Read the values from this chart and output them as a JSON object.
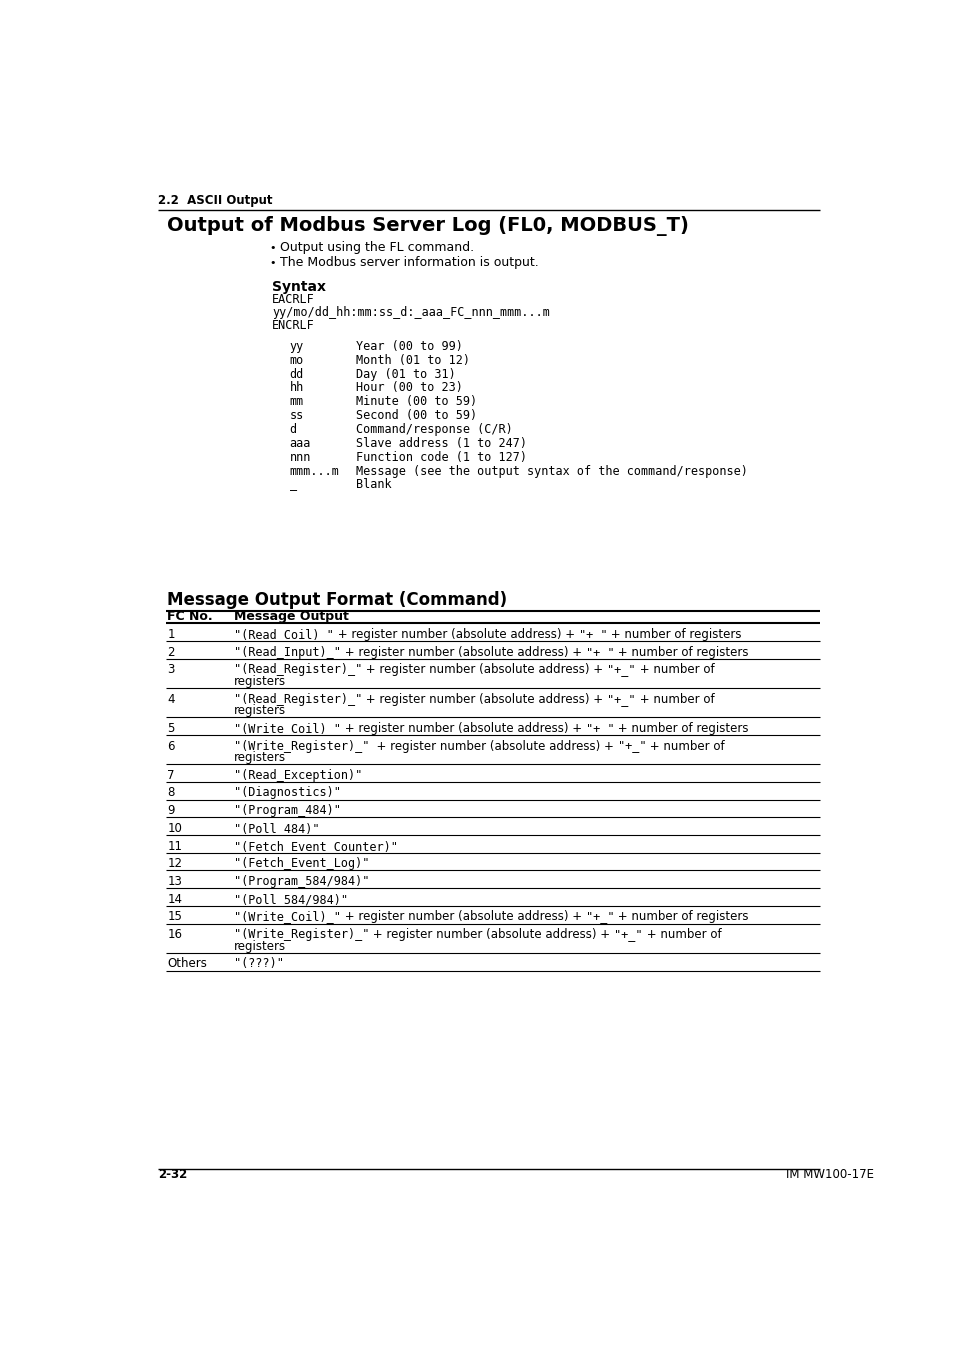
{
  "bg_color": "#ffffff",
  "section_label": "2.2  ASCII Output",
  "main_title": "Output of Modbus Server Log (FL0, MODBUS_T)",
  "bullets": [
    "Output using the FL command.",
    "The Modbus server information is output."
  ],
  "syntax_title": "Syntax",
  "syntax_lines": [
    "EACRLF",
    "yy/mo/dd_hh:mm:ss_d:_aaa_FC_nnn_mmm...m",
    "ENCRLF"
  ],
  "params": [
    [
      "yy",
      "Year (00 to 99)"
    ],
    [
      "mo",
      "Month (01 to 12)"
    ],
    [
      "dd",
      "Day (01 to 31)"
    ],
    [
      "hh",
      "Hour (00 to 23)"
    ],
    [
      "mm",
      "Minute (00 to 59)"
    ],
    [
      "ss",
      "Second (00 to 59)"
    ],
    [
      "d",
      "Command/response (C/R)"
    ],
    [
      "aaa",
      "Slave address (1 to 247)"
    ],
    [
      "nnn",
      "Function code (1 to 127)"
    ],
    [
      "mmm...m",
      "Message (see the output syntax of the command/response)"
    ],
    [
      "_",
      "Blank"
    ]
  ],
  "table_title": "Message Output Format (Command)",
  "table_header_fc": "FC No.",
  "table_header_msg": "Message Output",
  "table_rows": [
    [
      "1",
      [
        [
          "M",
          "\"(Read_Coil)_\""
        ],
        [
          "N",
          " + register number (absolute address) + "
        ],
        [
          "M",
          "\"+_\""
        ],
        [
          "N",
          " + number of registers"
        ]
      ]
    ],
    [
      "2",
      [
        [
          "M",
          "\"(Read_Input)_\""
        ],
        [
          "N",
          " + register number (absolute address) + "
        ],
        [
          "M",
          "\"+_\""
        ],
        [
          "N",
          " + number of registers"
        ]
      ]
    ],
    [
      "3",
      [
        [
          "M",
          "\"(Read_Register)_\""
        ],
        [
          "N",
          " + register number (absolute address) + "
        ],
        [
          "M",
          "\"+_\""
        ],
        [
          "N",
          " + number of\nregisters"
        ]
      ]
    ],
    [
      "4",
      [
        [
          "M",
          "\"(Read_Register)_\""
        ],
        [
          "N",
          " + register number (absolute address) + "
        ],
        [
          "M",
          "\"+_\""
        ],
        [
          "N",
          " + number of\nregisters"
        ]
      ]
    ],
    [
      "5",
      [
        [
          "M",
          "\"(Write_Coil)_\""
        ],
        [
          "N",
          " + register number (absolute address) + "
        ],
        [
          "M",
          "\"+_\""
        ],
        [
          "N",
          " + number of registers"
        ]
      ]
    ],
    [
      "6",
      [
        [
          "M",
          "\"(Write_Register)_\""
        ],
        [
          "N",
          "  + register number (absolute address) + "
        ],
        [
          "M",
          "\"+_\""
        ],
        [
          "N",
          " + number of\nregisters"
        ]
      ]
    ],
    [
      "7",
      [
        [
          "M",
          "\"(Read_Exception)\""
        ]
      ]
    ],
    [
      "8",
      [
        [
          "M",
          "\"(Diagnostics)\""
        ]
      ]
    ],
    [
      "9",
      [
        [
          "M",
          "\"(Program_484)\""
        ]
      ]
    ],
    [
      "10",
      [
        [
          "M",
          "\"(Poll_484)\""
        ]
      ]
    ],
    [
      "11",
      [
        [
          "M",
          "\"(Fetch_Event_Counter)\""
        ]
      ]
    ],
    [
      "12",
      [
        [
          "M",
          "\"(Fetch_Event_Log)\""
        ]
      ]
    ],
    [
      "13",
      [
        [
          "M",
          "\"(Program_584/984)\""
        ]
      ]
    ],
    [
      "14",
      [
        [
          "M",
          "\"(Poll_584/984)\""
        ]
      ]
    ],
    [
      "15",
      [
        [
          "M",
          "\"(Write_Coil)_\""
        ],
        [
          "N",
          " + register number (absolute address) + "
        ],
        [
          "M",
          "\"+_\""
        ],
        [
          "N",
          " + number of registers"
        ]
      ]
    ],
    [
      "16",
      [
        [
          "M",
          "\"(Write_Register)_\""
        ],
        [
          "N",
          " + register number (absolute address) + "
        ],
        [
          "M",
          "\"+_\""
        ],
        [
          "N",
          " + number of\nregisters"
        ]
      ]
    ],
    [
      "Others",
      [
        [
          "M",
          "\"(???)\""
        ]
      ]
    ]
  ],
  "footer_left": "2-32",
  "footer_right": "IM MW100-17E"
}
